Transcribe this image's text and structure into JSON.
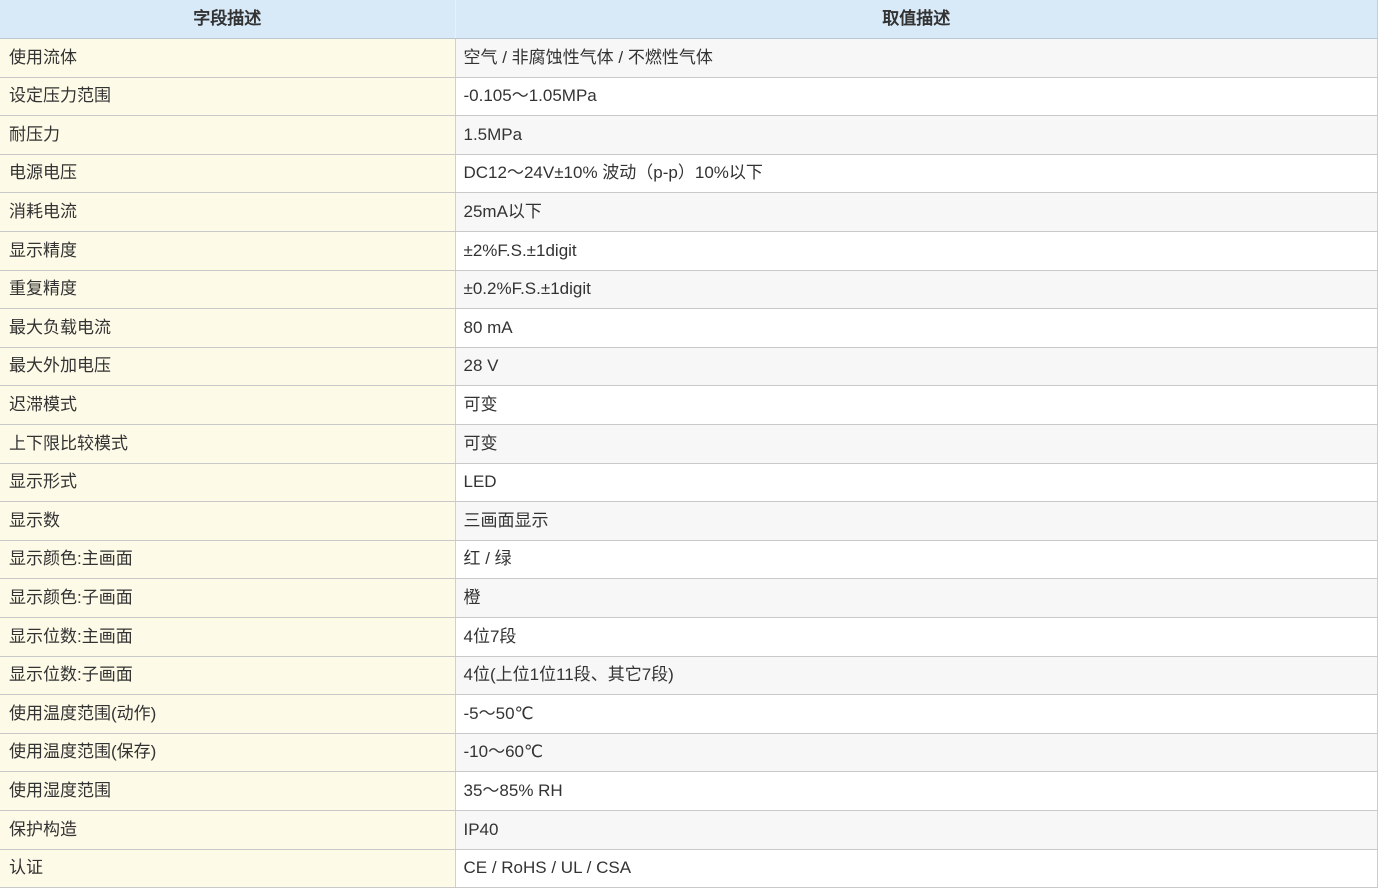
{
  "table": {
    "headers": {
      "field": "字段描述",
      "value": "取值描述"
    },
    "rows": [
      {
        "field": "使用流体",
        "value": "空气 / 非腐蚀性气体 / 不燃性气体"
      },
      {
        "field": "设定压力范围",
        "value": "-0.105～1.05MPa"
      },
      {
        "field": "耐压力",
        "value": "1.5MPa"
      },
      {
        "field": "电源电压",
        "value": "DC12～24V±10% 波动（p-p）10%以下"
      },
      {
        "field": "消耗电流",
        "value": "25mA以下"
      },
      {
        "field": "显示精度",
        "value": "±2%F.S.±1digit"
      },
      {
        "field": "重复精度",
        "value": "±0.2%F.S.±1digit"
      },
      {
        "field": "最大负载电流",
        "value": "80 mA"
      },
      {
        "field": "最大外加电压",
        "value": "28 V"
      },
      {
        "field": "迟滞模式",
        "value": "可变"
      },
      {
        "field": "上下限比较模式",
        "value": "可变"
      },
      {
        "field": "显示形式",
        "value": "LED"
      },
      {
        "field": "显示数",
        "value": "三画面显示"
      },
      {
        "field": "显示颜色:主画面",
        "value": "红 / 绿"
      },
      {
        "field": "显示颜色:子画面",
        "value": "橙"
      },
      {
        "field": "显示位数:主画面",
        "value": "4位7段"
      },
      {
        "field": "显示位数:子画面",
        "value": "4位(上位1位11段、其它7段)"
      },
      {
        "field": "使用温度范围(动作)",
        "value": "-5～50℃"
      },
      {
        "field": "使用温度范围(保存)",
        "value": "-10～60℃"
      },
      {
        "field": "使用湿度范围",
        "value": "35～85% RH"
      },
      {
        "field": "保护构造",
        "value": "IP40"
      },
      {
        "field": "认证",
        "value": "CE / RoHS / UL / CSA"
      }
    ],
    "colors": {
      "header_bg": "#d8eaf8",
      "field_col_bg": "#fdfae7",
      "value_row_alt_bg": "#f7f7f7",
      "value_row_bg": "#ffffff",
      "border": "#c9c9c9",
      "text": "#333333"
    }
  }
}
